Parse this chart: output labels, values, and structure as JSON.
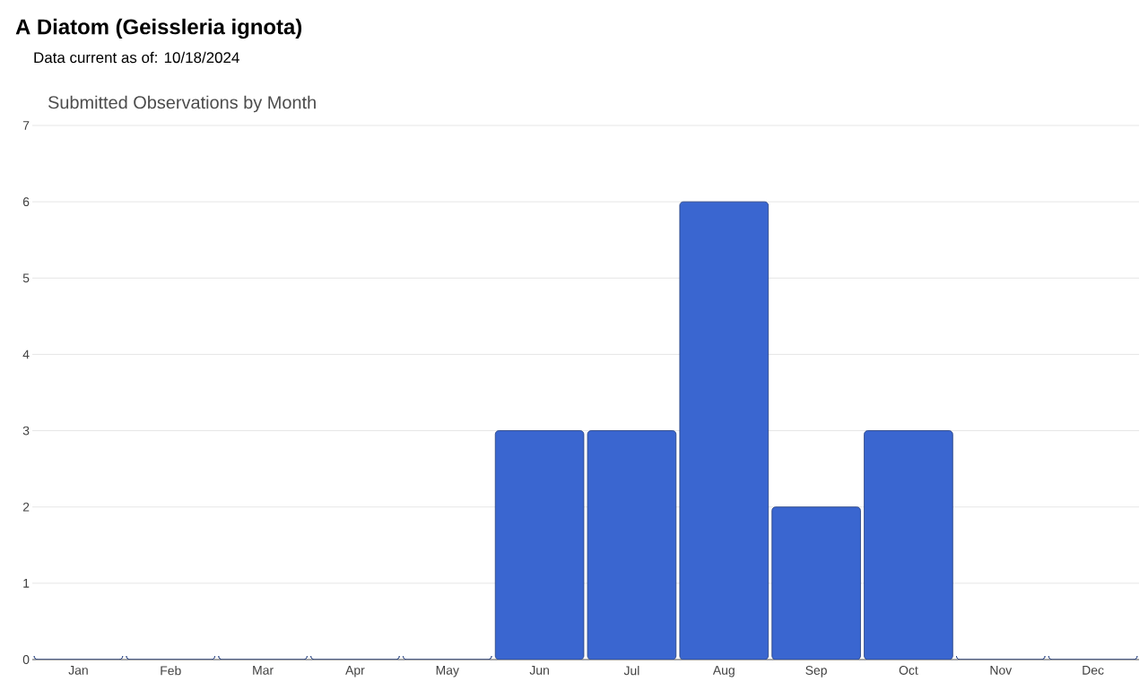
{
  "chart_data": {
    "type": "bar",
    "title": "A Diatom   (Geissleria ignota)",
    "subtitle": "Data current as of: 10/18/2024",
    "annotations": [
      "Submitted Observations by Month"
    ],
    "categories": [
      "Jan",
      "Feb",
      "Mar",
      "Apr",
      "May",
      "Jun",
      "Jul",
      "Aug",
      "Sep",
      "Oct",
      "Nov",
      "Dec"
    ],
    "values": [
      0,
      0,
      0,
      0,
      0,
      3,
      3,
      6,
      2,
      3,
      0,
      0
    ],
    "color": "#3a66d0",
    "ylim": [
      0,
      7
    ],
    "yticks": [
      0,
      1,
      2,
      3,
      4,
      5,
      6,
      7
    ],
    "grid": "y"
  }
}
